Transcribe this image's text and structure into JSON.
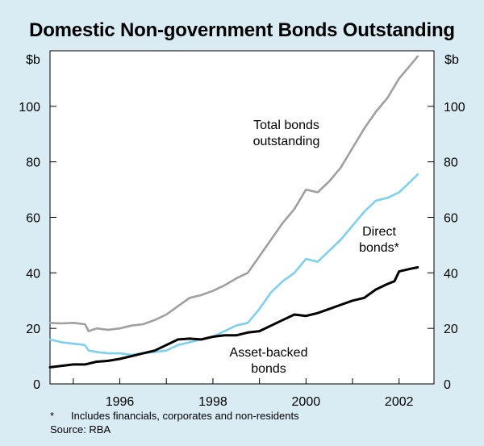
{
  "chart_data": {
    "type": "line",
    "title": "Domestic Non-government Bonds Outstanding",
    "y_unit_left": "$b",
    "y_unit_right": "$b",
    "ylim": [
      0,
      120
    ],
    "yticks": [
      0,
      20,
      40,
      60,
      80,
      100
    ],
    "xlim": [
      1994.5,
      2002.75
    ],
    "xticks": [
      1996,
      1998,
      2000,
      2002
    ],
    "grid": false,
    "legend": "inline labels",
    "annotations": {
      "total": [
        "Total bonds",
        "outstanding"
      ],
      "direct": [
        "Direct",
        "bonds*"
      ],
      "asset": [
        "Asset-backed",
        "bonds"
      ]
    },
    "series": [
      {
        "name": "Total bonds outstanding",
        "color": "#a0a0a0",
        "x": [
          1994.5,
          1994.75,
          1995.0,
          1995.25,
          1995.33,
          1995.5,
          1995.75,
          1996.0,
          1996.25,
          1996.5,
          1996.75,
          1997.0,
          1997.25,
          1997.5,
          1997.75,
          1998.0,
          1998.25,
          1998.5,
          1998.75,
          1999.0,
          1999.25,
          1999.5,
          1999.75,
          2000.0,
          2000.25,
          2000.5,
          2000.75,
          2001.0,
          2001.25,
          2001.5,
          2001.75,
          2002.0,
          2002.25,
          2002.4
        ],
        "values": [
          22,
          21.8,
          22,
          21.5,
          19,
          20,
          19.5,
          20,
          21,
          21.5,
          23,
          25,
          28,
          31,
          32,
          33.5,
          35.5,
          38,
          40,
          46,
          52,
          58,
          63,
          70,
          69,
          73,
          78,
          85,
          92,
          98,
          103,
          110,
          115,
          118
        ]
      },
      {
        "name": "Direct bonds*",
        "color": "#7fd0ec",
        "x": [
          1994.5,
          1994.75,
          1995.0,
          1995.25,
          1995.33,
          1995.5,
          1995.75,
          1996.0,
          1996.25,
          1996.5,
          1996.75,
          1997.0,
          1997.25,
          1997.5,
          1997.75,
          1998.0,
          1998.25,
          1998.5,
          1998.75,
          1999.0,
          1999.25,
          1999.5,
          1999.75,
          2000.0,
          2000.25,
          2000.5,
          2000.75,
          2001.0,
          2001.25,
          2001.5,
          2001.75,
          2002.0,
          2002.25,
          2002.4
        ],
        "values": [
          16,
          15,
          14.5,
          14,
          12,
          11.5,
          11,
          11,
          10.5,
          11,
          11.5,
          12,
          14,
          15,
          16,
          17,
          19,
          21,
          22,
          27,
          33,
          37,
          40,
          45,
          44,
          48,
          52,
          57,
          62,
          66,
          67,
          69,
          73,
          75.5
        ]
      },
      {
        "name": "Asset-backed bonds",
        "color": "#000000",
        "x": [
          1994.5,
          1994.75,
          1995.0,
          1995.25,
          1995.5,
          1995.75,
          1996.0,
          1996.25,
          1996.5,
          1996.75,
          1997.0,
          1997.25,
          1997.5,
          1997.75,
          1998.0,
          1998.25,
          1998.5,
          1998.75,
          1999.0,
          1999.25,
          1999.5,
          1999.75,
          2000.0,
          2000.25,
          2000.5,
          2000.75,
          2001.0,
          2001.25,
          2001.5,
          2001.75,
          2001.9,
          2002.0,
          2002.25,
          2002.4
        ],
        "values": [
          6,
          6.5,
          7,
          7,
          8,
          8.3,
          9,
          10,
          11,
          12,
          14,
          16,
          16.3,
          16,
          17,
          17.5,
          17.5,
          18.5,
          19,
          21,
          23,
          25,
          24.5,
          25.5,
          27,
          28.5,
          30,
          31,
          34,
          36,
          37,
          40.5,
          41.5,
          42
        ]
      }
    ],
    "notes": {
      "footnote_star": "*",
      "footnote": "Includes financials, corporates and non-residents",
      "source": "Source: RBA"
    }
  }
}
